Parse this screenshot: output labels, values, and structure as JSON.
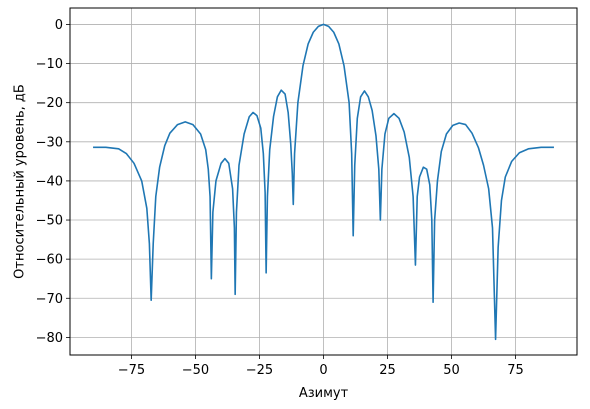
{
  "chart_data": {
    "type": "line",
    "title": "",
    "xlabel": "Азимут",
    "ylabel": "Относительный уровень, дБ",
    "xlim": [
      -99,
      99
    ],
    "ylim": [
      -84.5,
      4.2
    ],
    "xticks": [
      -75,
      -50,
      -25,
      0,
      25,
      50,
      75
    ],
    "xtick_labels": [
      "−75",
      "−50",
      "−25",
      "0",
      "25",
      "50",
      "75"
    ],
    "yticks": [
      0,
      -10,
      -20,
      -30,
      -40,
      -50,
      -60,
      -70,
      -80
    ],
    "ytick_labels": [
      "0",
      "−10",
      "−20",
      "−30",
      "−40",
      "−50",
      "−60",
      "−70",
      "−80"
    ],
    "grid": true,
    "legend": "none",
    "line_color": "#1f77b4",
    "series": [
      {
        "values_xy": [
          [
            -90,
            -31.4
          ],
          [
            -85,
            -31.4
          ],
          [
            -80,
            -31.8
          ],
          [
            -77,
            -33.0
          ],
          [
            -74,
            -35.5
          ],
          [
            -71,
            -40.0
          ],
          [
            -69,
            -47.0
          ],
          [
            -68,
            -56.0
          ],
          [
            -67.3,
            -70.5
          ],
          [
            -66.5,
            -56.0
          ],
          [
            -65.5,
            -44.0
          ],
          [
            -64,
            -36.5
          ],
          [
            -62,
            -31.0
          ],
          [
            -60,
            -27.8
          ],
          [
            -57,
            -25.6
          ],
          [
            -54,
            -24.9
          ],
          [
            -51,
            -25.6
          ],
          [
            -48,
            -28.0
          ],
          [
            -46,
            -32.0
          ],
          [
            -45,
            -37.0
          ],
          [
            -44.3,
            -44.0
          ],
          [
            -43.8,
            -65.0
          ],
          [
            -43.2,
            -48.0
          ],
          [
            -42,
            -40.0
          ],
          [
            -40,
            -35.5
          ],
          [
            -38.5,
            -34.3
          ],
          [
            -37,
            -35.5
          ],
          [
            -35.5,
            -42.0
          ],
          [
            -34.8,
            -52.0
          ],
          [
            -34.5,
            -69.0
          ],
          [
            -34,
            -48.0
          ],
          [
            -33,
            -36.0
          ],
          [
            -31,
            -28.0
          ],
          [
            -29,
            -23.6
          ],
          [
            -27.5,
            -22.5
          ],
          [
            -26,
            -23.3
          ],
          [
            -24.5,
            -26.5
          ],
          [
            -23.5,
            -33.0
          ],
          [
            -22.8,
            -43.0
          ],
          [
            -22.4,
            -63.5
          ],
          [
            -21.9,
            -44.0
          ],
          [
            -21,
            -32.0
          ],
          [
            -19.5,
            -23.5
          ],
          [
            -18,
            -18.5
          ],
          [
            -16.5,
            -16.8
          ],
          [
            -15,
            -17.8
          ],
          [
            -13.8,
            -22.5
          ],
          [
            -12.8,
            -30.5
          ],
          [
            -12.2,
            -38.0
          ],
          [
            -11.8,
            -46.0
          ],
          [
            -11.3,
            -33.0
          ],
          [
            -10,
            -20.0
          ],
          [
            -8,
            -10.5
          ],
          [
            -6,
            -5.0
          ],
          [
            -4,
            -2.0
          ],
          [
            -2,
            -0.5
          ],
          [
            0,
            0
          ],
          [
            2,
            -0.5
          ],
          [
            4,
            -2.0
          ],
          [
            6,
            -5.0
          ],
          [
            8,
            -10.5
          ],
          [
            10,
            -20.0
          ],
          [
            11,
            -33.0
          ],
          [
            11.6,
            -54.0
          ],
          [
            12.2,
            -36.0
          ],
          [
            13.2,
            -24.0
          ],
          [
            14.5,
            -18.5
          ],
          [
            16,
            -17.0
          ],
          [
            17.5,
            -18.5
          ],
          [
            19,
            -22.0
          ],
          [
            20.5,
            -28.5
          ],
          [
            21.6,
            -37.0
          ],
          [
            22.2,
            -50.0
          ],
          [
            22.8,
            -37.0
          ],
          [
            24,
            -28.0
          ],
          [
            25.5,
            -24.0
          ],
          [
            27.5,
            -22.8
          ],
          [
            29.5,
            -24.0
          ],
          [
            31.5,
            -27.5
          ],
          [
            33.5,
            -34.0
          ],
          [
            35,
            -44.0
          ],
          [
            35.9,
            -61.5
          ],
          [
            36.6,
            -44.0
          ],
          [
            37.5,
            -39.0
          ],
          [
            39,
            -36.5
          ],
          [
            40.3,
            -37.0
          ],
          [
            41.5,
            -41.0
          ],
          [
            42.3,
            -50.0
          ],
          [
            42.8,
            -71.0
          ],
          [
            43.4,
            -50.0
          ],
          [
            44.5,
            -40.0
          ],
          [
            46,
            -32.5
          ],
          [
            48,
            -28.0
          ],
          [
            50.5,
            -25.8
          ],
          [
            53,
            -25.2
          ],
          [
            55.5,
            -25.6
          ],
          [
            58,
            -27.8
          ],
          [
            60.5,
            -31.5
          ],
          [
            62.5,
            -36.0
          ],
          [
            64.5,
            -42.0
          ],
          [
            66,
            -52.0
          ],
          [
            67.2,
            -80.5
          ],
          [
            68.2,
            -57.0
          ],
          [
            69.5,
            -45.0
          ],
          [
            71,
            -39.0
          ],
          [
            73.5,
            -35.0
          ],
          [
            76.5,
            -32.8
          ],
          [
            80,
            -31.8
          ],
          [
            85,
            -31.4
          ],
          [
            90,
            -31.4
          ]
        ]
      }
    ]
  }
}
